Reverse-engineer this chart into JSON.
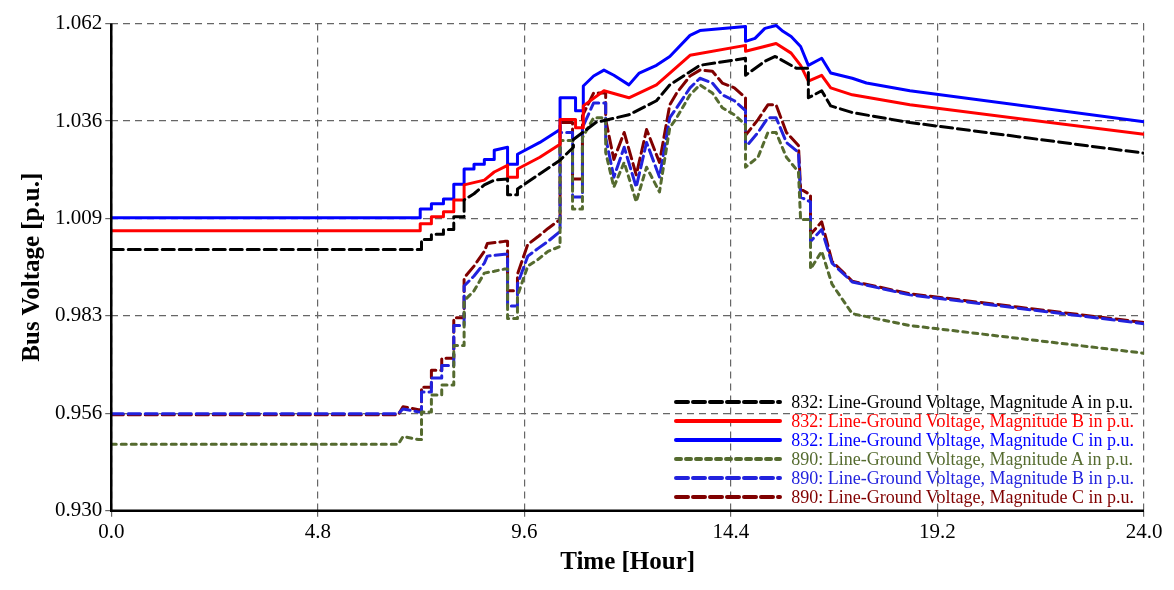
{
  "chart_data": {
    "type": "line",
    "xlabel": "Time [Hour]",
    "ylabel": "Bus Voltage [p.u.]",
    "xlim": [
      0,
      24
    ],
    "xticks": [
      {
        "value": 0,
        "label": "0.0"
      },
      4.8,
      9.6,
      14.4,
      19.2,
      {
        "value": 24,
        "label": "24.0"
      }
    ],
    "ylim": [
      0.93,
      1.062
    ],
    "yticks": [
      {
        "value": 0.93,
        "label": "0.930"
      },
      {
        "value": 0.9564,
        "label": "0.956"
      },
      {
        "value": 0.9828,
        "label": "0.983"
      },
      {
        "value": 1.0092,
        "label": "1.009"
      },
      {
        "value": 1.0356,
        "label": "1.036"
      },
      1.062
    ],
    "grid": true,
    "legend": "bottom right",
    "series": [
      {
        "name": "832: Line-Ground Voltage, Magnitude A in p.u.",
        "color": "#000000",
        "line_style": "dashed",
        "x": [
          0,
          7.21,
          7.21,
          7.44,
          7.44,
          7.72,
          7.72,
          7.96,
          7.96,
          8.2,
          8.2,
          8.43,
          8.67,
          8.9,
          9.21,
          9.21,
          9.44,
          9.44,
          10.43,
          10.74,
          10.74,
          11.26,
          12.03,
          12.67,
          12.98,
          13.68,
          14.74,
          14.74,
          15.19,
          15.43,
          15.92,
          16.2,
          16.2,
          16.51,
          16.72,
          17.22,
          18.56,
          24.0
        ],
        "values": [
          1.0008,
          1.0008,
          1.0035,
          1.0035,
          1.0049,
          1.0049,
          1.0062,
          1.0062,
          1.0097,
          1.0097,
          1.0142,
          1.0159,
          1.0183,
          1.0196,
          1.0199,
          1.0156,
          1.0156,
          1.0172,
          1.025,
          1.0285,
          1.0306,
          1.0352,
          1.0373,
          1.0411,
          1.0454,
          1.0507,
          1.0526,
          1.048,
          1.0518,
          1.0531,
          1.0499,
          1.0499,
          1.0419,
          1.0438,
          1.0397,
          1.0379,
          1.0352,
          1.0269
        ]
      },
      {
        "name": "832: Line-Ground Voltage, Magnitude B in p.u.",
        "color": "#ff0000",
        "line_style": "solid",
        "x": [
          0,
          7.18,
          7.18,
          7.44,
          7.44,
          7.72,
          7.72,
          7.96,
          7.96,
          8.2,
          8.2,
          8.67,
          8.9,
          9.21,
          9.21,
          9.44,
          9.44,
          9.96,
          10.43,
          10.43,
          10.79,
          10.79,
          10.97,
          10.97,
          11.45,
          12.03,
          12.67,
          13.45,
          14.74,
          14.74,
          15.45,
          15.8,
          16.02,
          16.2,
          16.51,
          16.72,
          17.22,
          18.56,
          24.0
        ],
        "values": [
          1.0059,
          1.0059,
          1.0078,
          1.0078,
          1.0097,
          1.0097,
          1.011,
          1.011,
          1.0142,
          1.0142,
          1.0183,
          1.0196,
          1.0218,
          1.0236,
          1.0204,
          1.0204,
          1.0226,
          1.0258,
          1.0293,
          1.036,
          1.036,
          1.0338,
          1.0338,
          1.0397,
          1.0438,
          1.0419,
          1.0454,
          1.0534,
          1.0561,
          1.0545,
          1.0566,
          1.054,
          1.0507,
          1.0464,
          1.048,
          1.0446,
          1.0427,
          1.04,
          1.032
        ]
      },
      {
        "name": "832: Line-Ground Voltage, Magnitude C in p.u.",
        "color": "#0000ff",
        "line_style": "solid",
        "x": [
          0,
          7.18,
          7.18,
          7.44,
          7.44,
          7.72,
          7.72,
          7.96,
          7.96,
          8.2,
          8.2,
          8.43,
          8.43,
          8.67,
          8.67,
          8.9,
          8.9,
          9.21,
          9.21,
          9.44,
          9.44,
          9.96,
          10.43,
          10.43,
          10.79,
          10.79,
          10.97,
          10.97,
          11.21,
          11.45,
          11.68,
          12.03,
          12.27,
          12.67,
          12.98,
          13.45,
          13.68,
          14.74,
          14.74,
          14.96,
          15.19,
          15.45,
          15.61,
          15.8,
          16.02,
          16.2,
          16.51,
          16.72,
          17.22,
          17.55,
          18.56,
          24.0
        ],
        "values": [
          1.0094,
          1.0094,
          1.0118,
          1.0118,
          1.0132,
          1.0132,
          1.0145,
          1.0145,
          1.0185,
          1.0185,
          1.0226,
          1.0226,
          1.0239,
          1.0239,
          1.0252,
          1.0252,
          1.0277,
          1.0285,
          1.0239,
          1.0239,
          1.0266,
          1.0298,
          1.0333,
          1.0419,
          1.0419,
          1.0384,
          1.0384,
          1.0451,
          1.0478,
          1.0494,
          1.048,
          1.0454,
          1.0486,
          1.0507,
          1.0531,
          1.0588,
          1.0601,
          1.0612,
          1.0572,
          1.058,
          1.0607,
          1.0615,
          1.0599,
          1.0585,
          1.0558,
          1.0507,
          1.0526,
          1.0486,
          1.0472,
          1.0459,
          1.0438,
          1.0354
        ]
      },
      {
        "name": "890: Line-Ground Voltage, Magnitude A in p.u.",
        "color": "#556b2f",
        "line_style": "dotted",
        "x": [
          0,
          6.67,
          6.78,
          7.14,
          7.21,
          7.21,
          7.44,
          7.44,
          7.68,
          7.68,
          7.96,
          7.96,
          8.2,
          8.2,
          8.43,
          8.67,
          8.9,
          9.14,
          9.21,
          9.21,
          9.44,
          9.44,
          9.68,
          9.92,
          10.15,
          10.43,
          10.43,
          10.72,
          10.72,
          10.95,
          10.95,
          11.21,
          11.49,
          11.49,
          11.68,
          11.92,
          12.2,
          12.44,
          12.74,
          12.98,
          13.14,
          13.45,
          13.68,
          13.97,
          14.2,
          14.48,
          14.74,
          14.74,
          15.03,
          15.26,
          15.45,
          15.69,
          15.97,
          16.02,
          16.25,
          16.25,
          16.51,
          16.75,
          17.22,
          18.56,
          24.0
        ],
        "values": [
          0.948,
          0.948,
          0.9501,
          0.9493,
          0.9493,
          0.9568,
          0.9568,
          0.9614,
          0.9614,
          0.9641,
          0.9641,
          0.9748,
          0.9748,
          0.9869,
          0.9896,
          0.9944,
          0.9949,
          0.9955,
          0.9955,
          0.9821,
          0.9821,
          0.9882,
          0.9963,
          0.9981,
          1.0003,
          1.0016,
          1.0303,
          1.0303,
          1.0118,
          1.0118,
          1.0311,
          1.0365,
          1.0365,
          1.0271,
          1.0177,
          1.0244,
          1.0137,
          1.0231,
          1.0164,
          1.0338,
          1.0365,
          1.0427,
          1.0454,
          1.0432,
          1.0392,
          1.0373,
          1.0346,
          1.0231,
          1.0258,
          1.0325,
          1.0325,
          1.0258,
          1.0218,
          1.0089,
          1.0089,
          0.9955,
          1.0003,
          0.9914,
          0.9834,
          0.9802,
          0.9727
        ]
      },
      {
        "name": "890: Line-Ground Voltage, Magnitude B in p.u.",
        "color": "#2222dd",
        "line_style": "dashed",
        "x": [
          0,
          6.67,
          6.78,
          7.14,
          7.21,
          7.21,
          7.44,
          7.44,
          7.68,
          7.68,
          7.96,
          7.96,
          8.2,
          8.2,
          8.43,
          8.67,
          8.74,
          9.14,
          9.21,
          9.21,
          9.44,
          9.44,
          9.68,
          9.92,
          10.15,
          10.43,
          10.43,
          10.72,
          10.72,
          10.95,
          10.95,
          11.21,
          11.49,
          11.49,
          11.68,
          11.92,
          12.2,
          12.44,
          12.74,
          12.98,
          13.14,
          13.45,
          13.68,
          13.97,
          14.2,
          14.48,
          14.74,
          14.74,
          15.03,
          15.26,
          15.45,
          15.69,
          15.97,
          16.02,
          16.25,
          16.25,
          16.51,
          16.75,
          17.22,
          18.56,
          24.0
        ],
        "values": [
          0.9563,
          0.9563,
          0.9576,
          0.9568,
          0.9568,
          0.9622,
          0.9622,
          0.966,
          0.966,
          0.9694,
          0.9694,
          0.9802,
          0.9802,
          0.9909,
          0.9936,
          0.9971,
          0.999,
          0.9995,
          0.9995,
          0.9855,
          0.9855,
          0.9914,
          0.999,
          1.0011,
          1.003,
          1.0057,
          1.0325,
          1.0325,
          1.015,
          1.015,
          1.0338,
          1.0405,
          1.0405,
          1.0311,
          1.0204,
          1.0285,
          1.0177,
          1.0298,
          1.0204,
          1.0365,
          1.0392,
          1.0446,
          1.0472,
          1.0459,
          1.0427,
          1.0411,
          1.0384,
          1.0285,
          1.0325,
          1.0365,
          1.0365,
          1.0298,
          1.0271,
          1.015,
          1.0137,
          1.003,
          1.0062,
          0.9971,
          0.992,
          0.9885,
          0.9807
        ]
      },
      {
        "name": "890: Line-Ground Voltage, Magnitude C in p.u.",
        "color": "#800000",
        "line_style": "dashed",
        "x": [
          0,
          6.67,
          6.78,
          7.14,
          7.21,
          7.21,
          7.44,
          7.44,
          7.68,
          7.68,
          7.96,
          7.96,
          8.2,
          8.2,
          8.43,
          8.67,
          8.74,
          9.14,
          9.21,
          9.21,
          9.44,
          9.44,
          9.68,
          9.92,
          10.15,
          10.43,
          10.43,
          10.72,
          10.72,
          10.95,
          10.95,
          11.21,
          11.49,
          11.49,
          11.68,
          11.92,
          12.2,
          12.44,
          12.74,
          12.98,
          13.14,
          13.45,
          13.68,
          13.97,
          14.2,
          14.48,
          14.74,
          14.74,
          15.03,
          15.26,
          15.45,
          15.69,
          15.97,
          16.02,
          16.25,
          16.25,
          16.51,
          16.75,
          17.22,
          18.56,
          24.0
        ],
        "values": [
          0.956,
          0.956,
          0.9582,
          0.9574,
          0.9574,
          0.9635,
          0.9635,
          0.9681,
          0.9681,
          0.9713,
          0.9713,
          0.9823,
          0.9823,
          0.9931,
          0.9963,
          1.0003,
          1.0024,
          1.003,
          1.003,
          0.9896,
          0.9896,
          0.9941,
          1.0022,
          1.0043,
          1.0065,
          1.0089,
          1.0352,
          1.0352,
          1.0199,
          1.0199,
          1.037,
          1.0432,
          1.0432,
          1.036,
          1.0252,
          1.0325,
          1.021,
          1.0333,
          1.0244,
          1.04,
          1.0432,
          1.0478,
          1.0494,
          1.0491,
          1.0459,
          1.0446,
          1.0419,
          1.0317,
          1.036,
          1.04,
          1.04,
          1.0325,
          1.029,
          1.0172,
          1.0156,
          1.0049,
          1.0083,
          0.9976,
          0.9922,
          0.9888,
          0.981
        ]
      }
    ]
  }
}
